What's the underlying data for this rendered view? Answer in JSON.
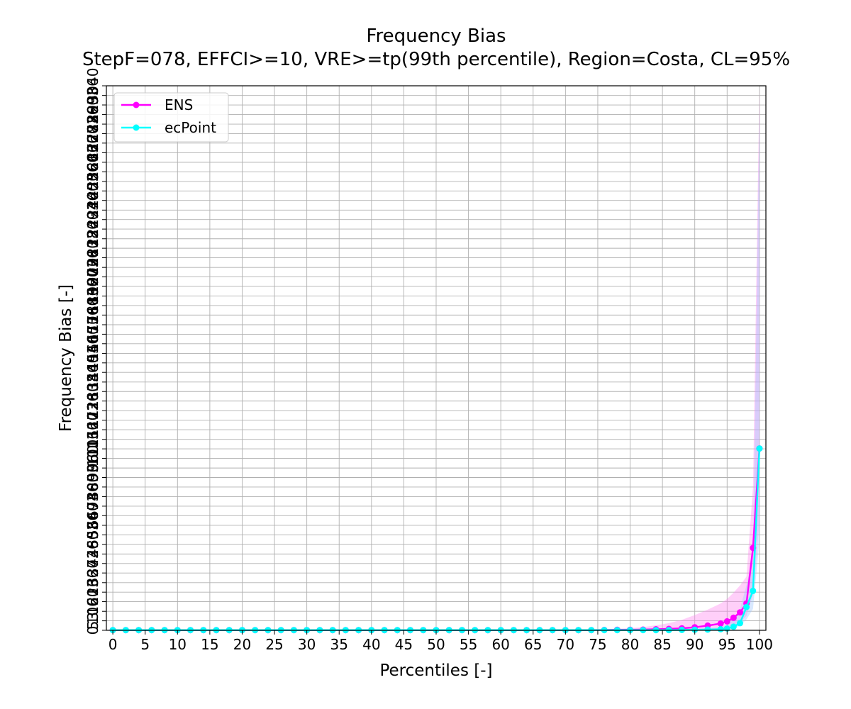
{
  "chart_data": {
    "type": "line",
    "title": "Frequency Bias",
    "subtitle": "StepF=078, EFFCI>=10, VRE>=tp(99th percentile), Region=Costa, CL=95%",
    "xlabel": "Percentiles [-]",
    "ylabel": "Frequency Bias [-]",
    "xlim": [
      -1,
      101
    ],
    "ylim": [
      0,
      3040
    ],
    "x_ticks": [
      0,
      5,
      10,
      15,
      20,
      25,
      30,
      35,
      40,
      45,
      50,
      55,
      60,
      65,
      70,
      75,
      80,
      85,
      90,
      95,
      100
    ],
    "x_tick_labels": [
      "0",
      "5",
      "10",
      "15",
      "20",
      "25",
      "30",
      "35",
      "40",
      "45",
      "50",
      "55",
      "60",
      "65",
      "70",
      "75",
      "80",
      "85",
      "90",
      "95",
      "100"
    ],
    "y_ticks": [
      0,
      53,
      106,
      160,
      213,
      266,
      320,
      373,
      426,
      480,
      533,
      586,
      640,
      693,
      746,
      800,
      853,
      906,
      960,
      1013,
      1066,
      1120,
      1173,
      1226,
      1280,
      1333,
      1386,
      1440,
      1493,
      1546,
      1600,
      1653,
      1706,
      1760,
      1813,
      1866,
      1920,
      1973,
      2026,
      2080,
      2133,
      2186,
      2240,
      2293,
      2346,
      2400,
      2453,
      2506,
      2560,
      2613,
      2666,
      2720,
      2773,
      2826,
      2880,
      2933,
      2986,
      3040
    ],
    "y_tick_labels_overlapping": true,
    "grid": true,
    "legend_position": "top-left",
    "x": [
      0,
      2,
      4,
      6,
      8,
      10,
      12,
      14,
      16,
      18,
      20,
      22,
      24,
      26,
      28,
      30,
      32,
      34,
      36,
      38,
      40,
      42,
      44,
      46,
      48,
      50,
      52,
      54,
      56,
      58,
      60,
      62,
      64,
      66,
      68,
      70,
      72,
      74,
      76,
      78,
      80,
      82,
      84,
      86,
      88,
      90,
      92,
      94,
      95,
      96,
      97,
      98,
      99,
      100
    ],
    "series": [
      {
        "name": "ENS",
        "color": "#ff00ff",
        "band_color": "#ff88f0",
        "values": [
          1,
          1,
          1,
          1,
          1,
          1,
          1,
          1,
          1,
          1,
          1,
          1,
          1,
          1,
          1,
          1,
          1,
          1,
          1,
          1,
          1,
          1,
          1,
          1,
          1,
          1,
          1,
          1,
          1,
          1,
          1,
          1,
          1,
          1,
          1,
          1,
          1,
          1,
          2,
          3,
          3,
          4,
          6,
          8,
          11,
          17,
          26,
          38,
          50,
          70,
          100,
          150,
          460,
          1015
        ],
        "lower": [
          0,
          0,
          0,
          0,
          0,
          0,
          0,
          0,
          0,
          0,
          0,
          0,
          0,
          0,
          0,
          0,
          0,
          0,
          0,
          0,
          0,
          0,
          0,
          0,
          0,
          0,
          0,
          0,
          0,
          0,
          0,
          0,
          0,
          0,
          0,
          0,
          0,
          0,
          0,
          0,
          0,
          0,
          0,
          0,
          0,
          2,
          6,
          12,
          18,
          28,
          45,
          80,
          200,
          600
        ],
        "upper": [
          2,
          2,
          2,
          2,
          2,
          2,
          2,
          2,
          2,
          2,
          2,
          2,
          2,
          2,
          2,
          2,
          2,
          2,
          2,
          2,
          2,
          2,
          2,
          2,
          2,
          2,
          2,
          2,
          2,
          2,
          2,
          2,
          2,
          2,
          2,
          2,
          2,
          2,
          5,
          8,
          12,
          18,
          28,
          40,
          58,
          85,
          115,
          150,
          175,
          210,
          250,
          300,
          800,
          3030
        ]
      },
      {
        "name": "ecPoint",
        "color": "#00ffff",
        "band_color": "#9fc7ff",
        "values": [
          1,
          1,
          1,
          1,
          1,
          1,
          1,
          1,
          1,
          1,
          1,
          1,
          1,
          1,
          1,
          1,
          1,
          1,
          1,
          1,
          1,
          1,
          1,
          1,
          1,
          1,
          1,
          1,
          1,
          1,
          1,
          1,
          1,
          1,
          1,
          1,
          1,
          1,
          1,
          1,
          1,
          1,
          1,
          1,
          2,
          3,
          4,
          6,
          10,
          20,
          40,
          130,
          220,
          1015
        ],
        "lower": [
          0,
          0,
          0,
          0,
          0,
          0,
          0,
          0,
          0,
          0,
          0,
          0,
          0,
          0,
          0,
          0,
          0,
          0,
          0,
          0,
          0,
          0,
          0,
          0,
          0,
          0,
          0,
          0,
          0,
          0,
          0,
          0,
          0,
          0,
          0,
          0,
          0,
          0,
          0,
          0,
          0,
          0,
          0,
          0,
          0,
          0,
          1,
          2,
          4,
          10,
          25,
          60,
          120,
          500
        ],
        "upper": [
          2,
          2,
          2,
          2,
          2,
          2,
          2,
          2,
          2,
          2,
          2,
          2,
          2,
          2,
          2,
          2,
          2,
          2,
          2,
          2,
          2,
          2,
          2,
          2,
          2,
          2,
          2,
          2,
          2,
          2,
          2,
          2,
          2,
          2,
          2,
          2,
          2,
          2,
          2,
          2,
          2,
          2,
          3,
          4,
          6,
          8,
          12,
          18,
          28,
          60,
          120,
          250,
          420,
          2900
        ]
      }
    ]
  }
}
